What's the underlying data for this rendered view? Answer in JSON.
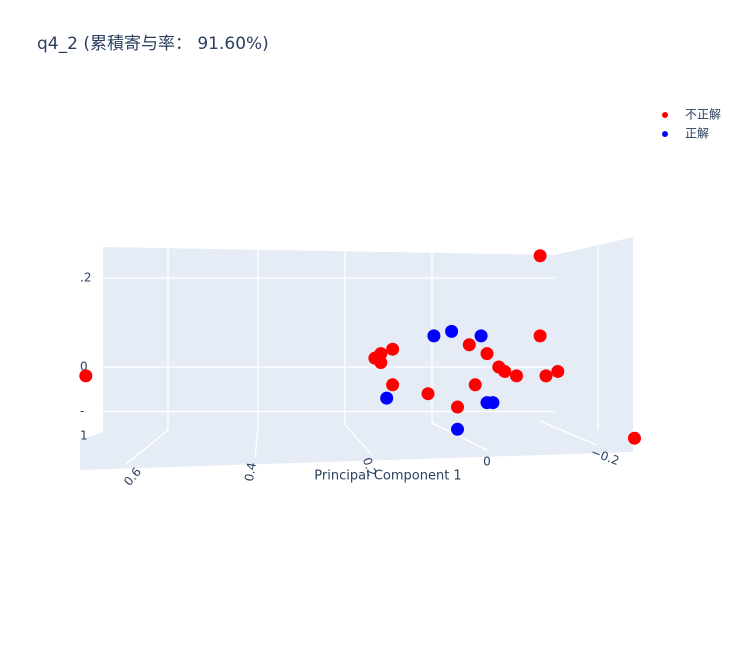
{
  "chart_data": {
    "type": "scatter3d",
    "title": "q4_2 (累積寄与率： 91.60%)",
    "x_label": "Principal Component 1",
    "xticks": [
      {
        "value": 0.6,
        "label": "0.6"
      },
      {
        "value": 0.4,
        "label": "0.4"
      },
      {
        "value": 0.2,
        "label": "0.2"
      },
      0,
      {
        "value": -0.2,
        "label": "−0.2"
      }
    ],
    "yticks": [
      {
        "value": 0.2,
        "label": ".2"
      },
      0,
      {
        "value": -0.1,
        "label": "-"
      }
    ],
    "annotations": [
      "1"
    ],
    "legend": "top-right",
    "series": [
      {
        "name": "不正解",
        "color": "#ff0000",
        "x": [
          -0.09,
          0.68,
          -0.09,
          0.18,
          0.16,
          0.19,
          0.18,
          0.03,
          0.0,
          -0.02,
          -0.03,
          -0.05,
          -0.1,
          -0.12,
          0.16,
          0.1,
          0.02,
          0.05,
          -0.25
        ],
        "values": [
          0.25,
          -0.02,
          0.07,
          0.03,
          0.04,
          0.02,
          0.01,
          0.05,
          0.03,
          0.0,
          -0.01,
          -0.02,
          -0.02,
          -0.01,
          -0.04,
          -0.06,
          -0.04,
          -0.09,
          -0.16
        ]
      },
      {
        "name": "正解",
        "color": "#0000ff",
        "x": [
          0.09,
          0.06,
          0.01,
          0.17,
          0.0,
          -0.01,
          0.05
        ],
        "values": [
          0.07,
          0.08,
          0.07,
          -0.07,
          -0.08,
          -0.08,
          -0.14
        ]
      }
    ]
  }
}
